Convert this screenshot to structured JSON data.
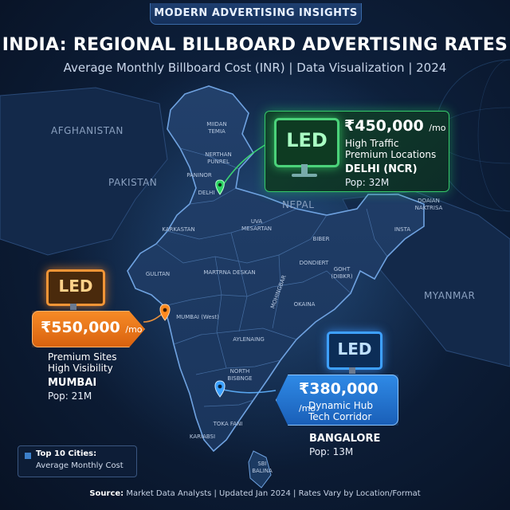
{
  "header": {
    "badge": "MODERN ADVERTISING INSIGHTS",
    "title": "INDIA: REGIONAL BILLBOARD ADVERTISING RATES",
    "subtitle": "Average Monthly Billboard Cost (INR) | Data Visualization | 2024"
  },
  "countries": {
    "afghanistan": "AFGHANISTAN",
    "pakistan": "PAKISTAN",
    "nepal": "NEPAL",
    "myanmar": "MYANMAR"
  },
  "regions": [
    "MIIDAN TEMIA",
    "NERTHAN PUNREL",
    "PANINOR",
    "DELHI",
    "KARKASTAN",
    "UVA MESARTAN",
    "BIBER",
    "INSTA",
    "DOAIAN NAKTRISA",
    "DONDIERT",
    "GOHT (DIBKR)",
    "GULITAN",
    "MARTRNA DESKAN",
    "MUMBAI (West)",
    "MOHINGBAR",
    "OKAINA",
    "AYLENAING",
    "NORTH BISBNGE",
    "TOKA FANI",
    "KARIABSI",
    "SBI BALINA"
  ],
  "cities": {
    "delhi": {
      "board": "LED",
      "price": "₹450,000",
      "unit": "/mo",
      "line1": "High Traffic",
      "line2": "Premium Locations",
      "name": "DELHI (NCR)",
      "pop": "Pop: 32M",
      "color": "#22c95a"
    },
    "mumbai": {
      "board": "LED",
      "price": "₹550,000",
      "unit": "/mo",
      "line1": "Premium Sites",
      "line2": "High Visibility",
      "name": "MUMBAI",
      "pop": "Pop: 21M",
      "color": "#f07a1e"
    },
    "bangalore": {
      "board": "LED",
      "price": "₹380,000",
      "unit": "/mo",
      "line1": "Dynamic Hub",
      "line2": "Tech Corridor",
      "name": "BANGALORE",
      "pop": "Pop: 13M",
      "color": "#2f8de8"
    }
  },
  "legend": {
    "title": "Top 10 Cities:",
    "subtitle": "Average Monthly Cost"
  },
  "footer": {
    "source_label": "Source:",
    "source_text": "Market Data Analysts  |  Updated Jan 2024  |  Rates Vary by Location/Format"
  }
}
